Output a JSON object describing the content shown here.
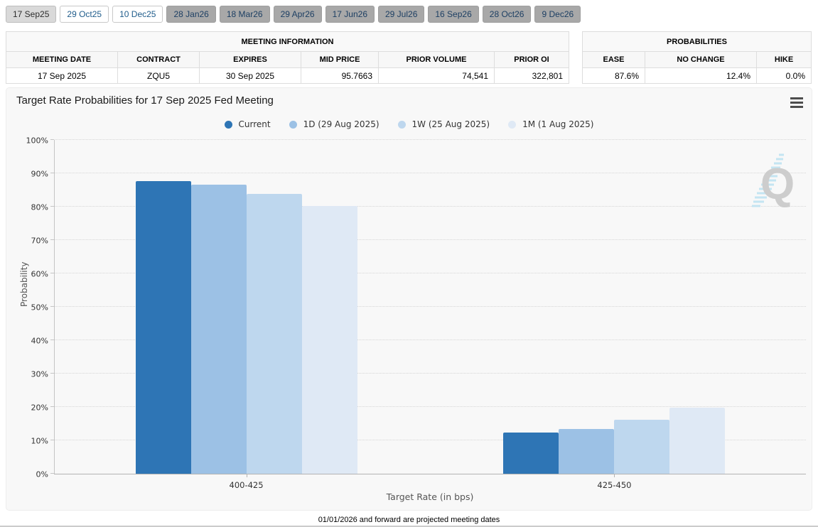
{
  "tabs": {
    "items": [
      {
        "label": "17 Sep25",
        "state": "selected"
      },
      {
        "label": "29 Oct25",
        "state": "open"
      },
      {
        "label": "10 Dec25",
        "state": "open"
      },
      {
        "label": "28 Jan26",
        "state": "projected"
      },
      {
        "label": "18 Mar26",
        "state": "projected"
      },
      {
        "label": "29 Apr26",
        "state": "projected"
      },
      {
        "label": "17 Jun26",
        "state": "projected"
      },
      {
        "label": "29 Jul26",
        "state": "projected"
      },
      {
        "label": "16 Sep26",
        "state": "projected"
      },
      {
        "label": "28 Oct26",
        "state": "projected"
      },
      {
        "label": "9 Dec26",
        "state": "projected"
      }
    ]
  },
  "meeting_info": {
    "title": "MEETING INFORMATION",
    "columns": [
      "MEETING DATE",
      "CONTRACT",
      "EXPIRES",
      "MID PRICE",
      "PRIOR VOLUME",
      "PRIOR OI"
    ],
    "values": [
      "17 Sep 2025",
      "ZQU5",
      "30 Sep 2025",
      "95.7663",
      "74,541",
      "322,801"
    ]
  },
  "probabilities": {
    "title": "PROBABILITIES",
    "columns": [
      "EASE",
      "NO CHANGE",
      "HIKE"
    ],
    "values": [
      "87.6%",
      "12.4%",
      "0.0%"
    ]
  },
  "chart": {
    "title": "Target Rate Probabilities for 17 Sep 2025 Fed Meeting",
    "menu_icon": "hamburger-icon",
    "watermark_letter": "Q"
  },
  "chart_data": {
    "type": "bar",
    "title": "Target Rate Probabilities for 17 Sep 2025 Fed Meeting",
    "categories": [
      "400-425",
      "425-450"
    ],
    "series": [
      {
        "name": "Current",
        "color": "#2E75B5",
        "values": [
          87.6,
          12.4
        ]
      },
      {
        "name": "1D (29 Aug 2025)",
        "color": "#9CC1E5",
        "values": [
          86.5,
          13.5
        ]
      },
      {
        "name": "1W (25 Aug 2025)",
        "color": "#BED7EE",
        "values": [
          83.8,
          16.2
        ]
      },
      {
        "name": "1M (1 Aug 2025)",
        "color": "#DFE9F5",
        "values": [
          80.3,
          19.7
        ]
      }
    ],
    "xlabel": "Target Rate (in bps)",
    "ylabel": "Probability",
    "ylim": [
      0,
      100
    ],
    "ytick_step": 10,
    "ytick_suffix": "%",
    "grid": true,
    "legend_position": "top"
  },
  "footer": {
    "note": "01/01/2026 and forward are projected meeting dates"
  }
}
